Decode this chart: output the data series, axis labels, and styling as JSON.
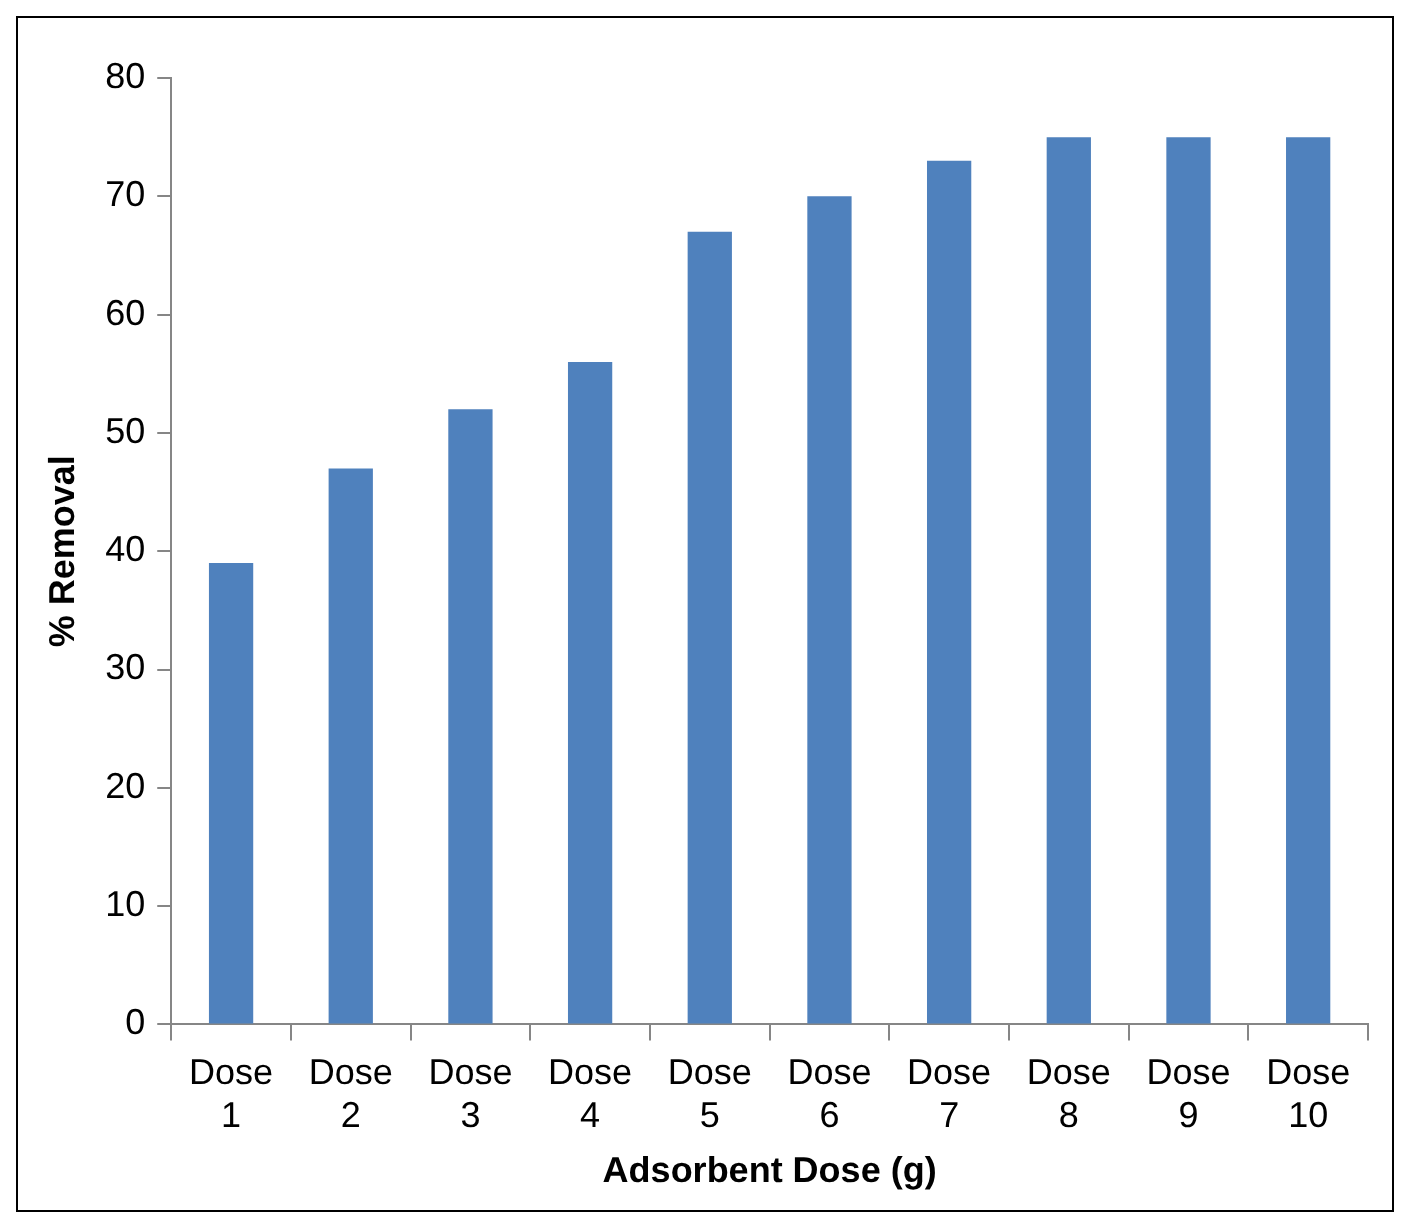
{
  "chart_data": {
    "type": "bar",
    "xlabel": "Adsorbent Dose (g)",
    "ylabel": "% Removal",
    "categories": [
      "Dose 1",
      "Dose 2",
      "Dose 3",
      "Dose 4",
      "Dose 5",
      "Dose 6",
      "Dose 7",
      "Dose 8",
      "Dose 9",
      "Dose 10"
    ],
    "values": [
      39,
      47,
      52,
      56,
      67,
      70,
      73,
      75,
      75,
      75
    ],
    "color": "#4f81bd",
    "ylim": [
      0,
      80
    ],
    "yticks": [
      0,
      10,
      20,
      30,
      40,
      50,
      60,
      70,
      80
    ],
    "grid": false,
    "legend": false
  }
}
